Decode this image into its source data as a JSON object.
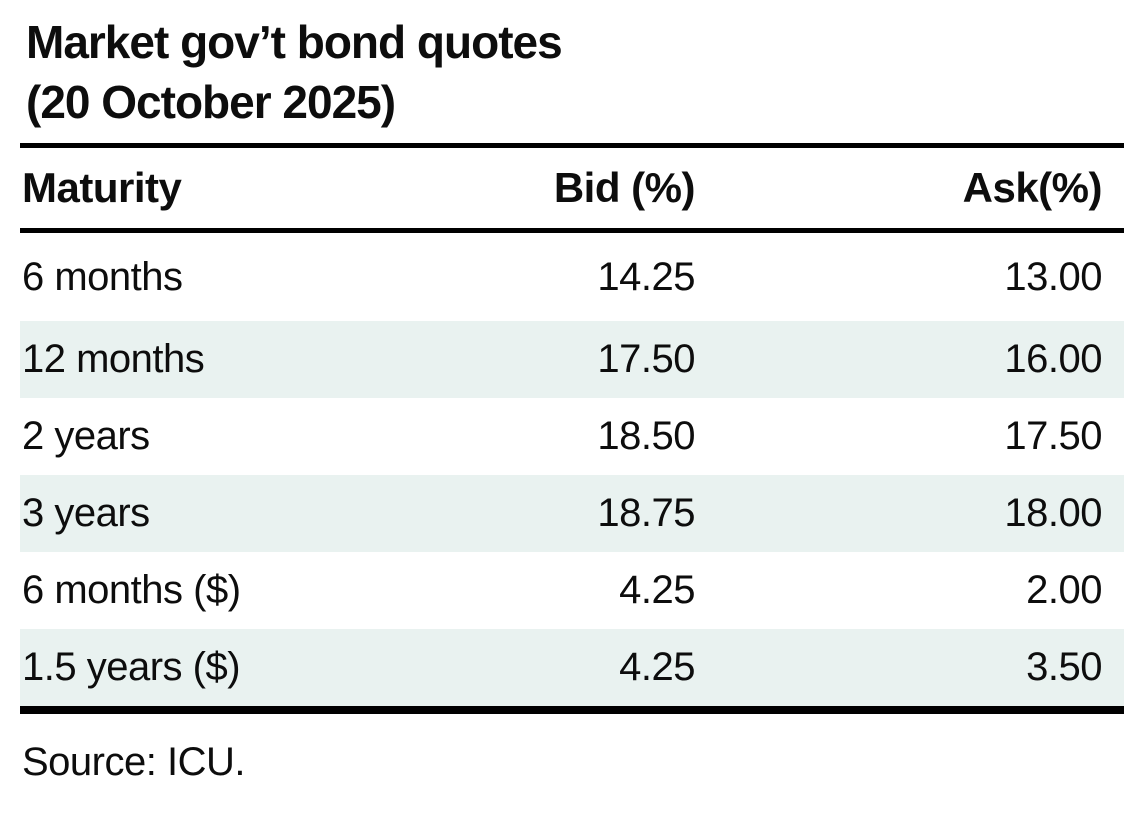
{
  "title": {
    "line1": "Market gov’t bond quotes",
    "line2": "(20 October 2025)"
  },
  "table": {
    "columns": [
      "Maturity",
      "Bid (%)",
      "Ask(%)"
    ],
    "rows": [
      {
        "maturity": "6 months",
        "bid": "14.25",
        "ask": "13.00"
      },
      {
        "maturity": "12 months",
        "bid": "17.50",
        "ask": "16.00"
      },
      {
        "maturity": "2 years",
        "bid": "18.50",
        "ask": "17.50"
      },
      {
        "maturity": "3 years",
        "bid": "18.75",
        "ask": "18.00"
      },
      {
        "maturity": "6 months ($)",
        "bid": "4.25",
        "ask": "2.00"
      },
      {
        "maturity": "1.5 years ($)",
        "bid": "4.25",
        "ask": "3.50"
      }
    ]
  },
  "source": "Source: ICU.",
  "colors": {
    "stripe": "#e9f2f0",
    "rule": "#000000",
    "text": "#0d0d0d",
    "background": "#ffffff"
  },
  "chart_data": {
    "type": "table",
    "title": "Market gov’t bond quotes (20 October 2025)",
    "columns": [
      "Maturity",
      "Bid (%)",
      "Ask(%)"
    ],
    "rows": [
      [
        "6 months",
        14.25,
        13.0
      ],
      [
        "12 months",
        17.5,
        16.0
      ],
      [
        "2 years",
        18.5,
        17.5
      ],
      [
        "3 years",
        18.75,
        18.0
      ],
      [
        "6 months ($)",
        4.25,
        2.0
      ],
      [
        "1.5 years ($)",
        4.25,
        3.5
      ]
    ],
    "source": "Source: ICU."
  }
}
